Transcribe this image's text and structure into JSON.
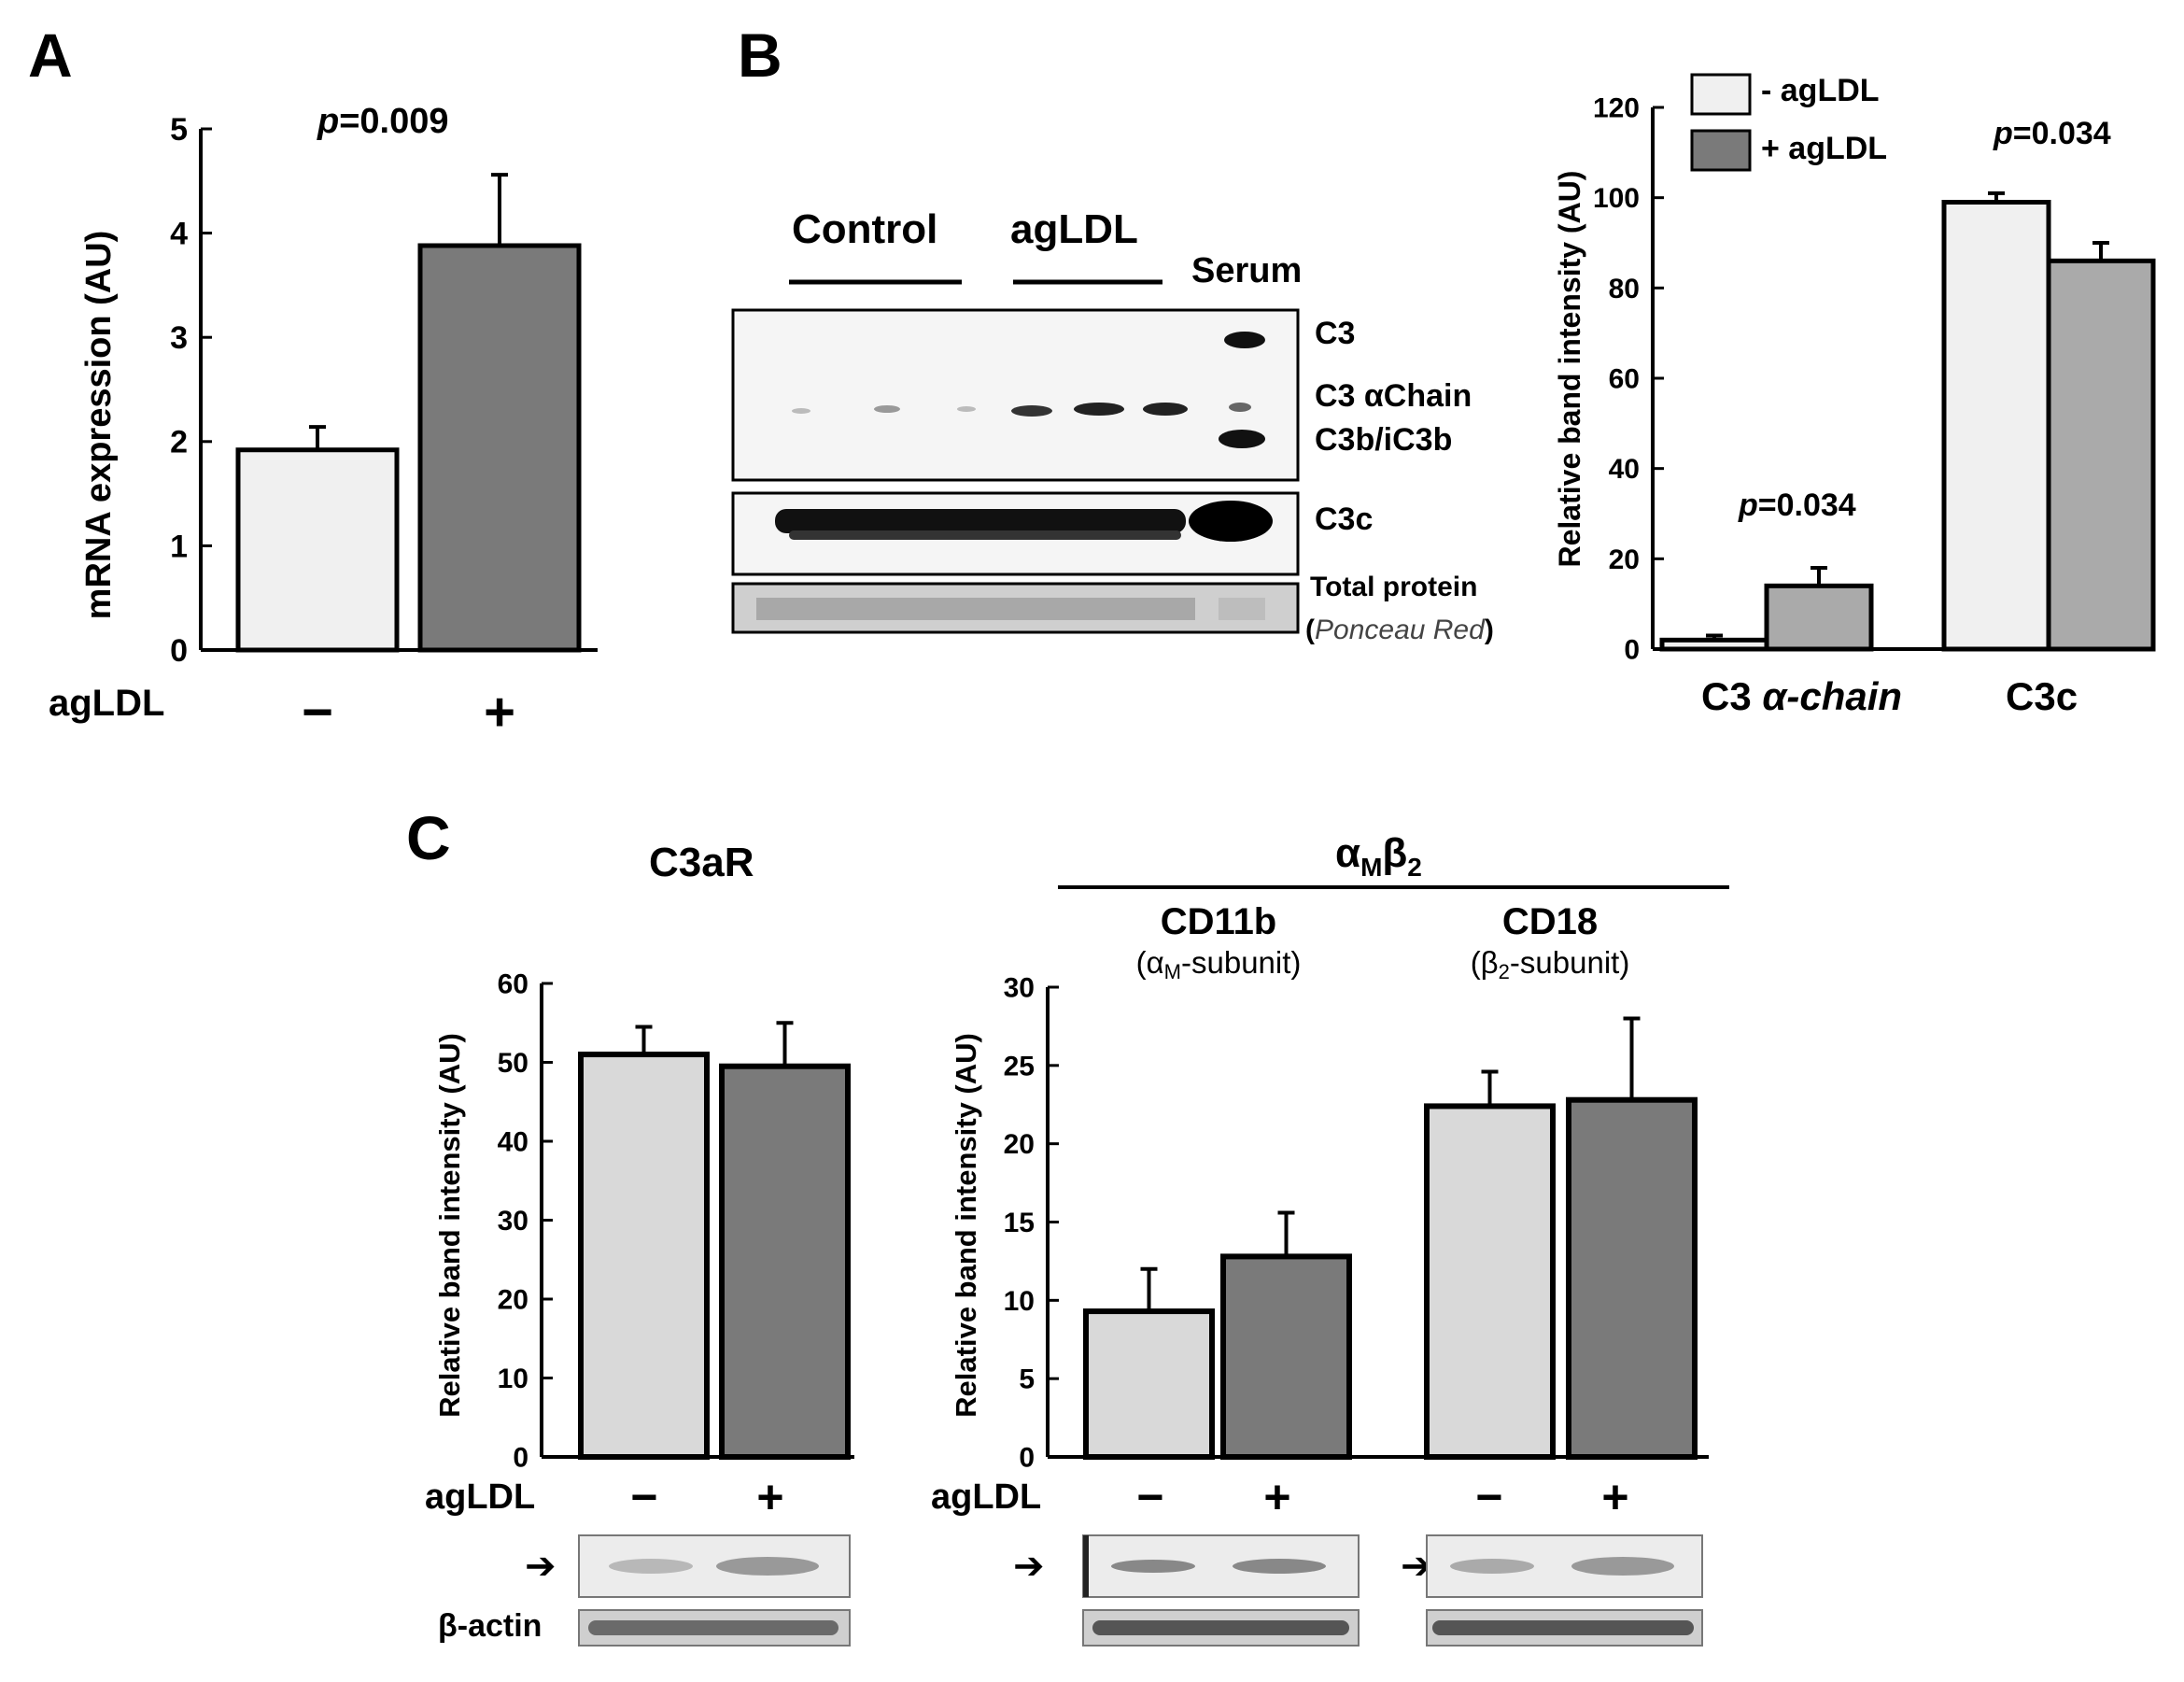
{
  "panels": {
    "A": {
      "letter": "A",
      "chart_data": {
        "type": "bar",
        "categories": [
          "−",
          "+"
        ],
        "values": [
          1.92,
          3.88
        ],
        "errors": [
          0.22,
          0.68
        ],
        "ylabel": "mRNA expression (AU)",
        "xlabel": "agLDL",
        "ylim": [
          0,
          5
        ],
        "yticks": [
          "0",
          "1",
          "2",
          "3",
          "4",
          "5"
        ],
        "pvalue_prefix": "p",
        "pvalue_suffix": "=0.009",
        "colors": [
          "#f0f0f0",
          "#7a7a7a"
        ]
      }
    },
    "B": {
      "letter": "B",
      "blot": {
        "group_labels": [
          "Control",
          "agLDL",
          "Serum"
        ],
        "band_labels": [
          "C3",
          "C3 αChain",
          "C3b/iC3b",
          "C3c"
        ],
        "total_protein_label": "Total protein",
        "ponceau_open": "(",
        "ponceau_label": "Ponceau Red",
        "ponceau_close": ")"
      },
      "chart_data": {
        "type": "bar",
        "categories": [
          "C3 α-chain",
          "C3c"
        ],
        "category_prefix": [
          "C3 ",
          ""
        ],
        "category_italic": [
          "α-chain",
          "C3c"
        ],
        "series": [
          {
            "name": "- agLDL",
            "values": [
              2,
              99
            ],
            "errors": [
              1,
              2
            ],
            "color": "#f0f0f0"
          },
          {
            "name": "+ agLDL",
            "values": [
              14,
              86
            ],
            "errors": [
              4,
              4
            ],
            "color": "#aaaaaa"
          }
        ],
        "ylabel": "Relative band intensity (AU)",
        "ylim": [
          0,
          120
        ],
        "yticks": [
          "0",
          "20",
          "40",
          "60",
          "80",
          "100",
          "120"
        ],
        "pvalues": [
          "=0.034",
          "=0.034"
        ],
        "pvalue_prefix": "p",
        "legend": "top-left"
      }
    },
    "C": {
      "letter": "C",
      "row_label": "agLDL",
      "minus": "−",
      "plus": "+",
      "beta_actin": "β-actin",
      "arrow": "➔",
      "complex_label_main": "α",
      "complex_label_sub1": "M",
      "complex_label_beta": "β",
      "complex_label_sub2": "2",
      "c3ar": {
        "title": "C3aR",
        "chart_data": {
          "type": "bar",
          "categories": [
            "−",
            "+"
          ],
          "values": [
            51,
            49.5
          ],
          "errors": [
            3.5,
            5.5
          ],
          "ylabel": "Relative band intensity (AU)",
          "ylim": [
            0,
            60
          ],
          "yticks": [
            "0",
            "10",
            "20",
            "30",
            "40",
            "50",
            "60"
          ],
          "colors": [
            "#d9d9d9",
            "#7a7a7a"
          ]
        }
      },
      "cd11b": {
        "title": "CD11b",
        "sub_open": "(α",
        "sub_sub": "M",
        "sub_close": "-subunit)"
      },
      "cd18": {
        "title": "CD18",
        "sub_open": "(β",
        "sub_sub": "2",
        "sub_close": "-subunit)"
      },
      "integrin_chart": {
        "chart_data": {
          "type": "bar",
          "groups": [
            "CD11b",
            "CD18"
          ],
          "values": [
            9.3,
            12.8,
            22.4,
            22.8
          ],
          "errors": [
            2.7,
            2.8,
            2.2,
            5.2
          ],
          "ylabel": "Relative band intensity (AU)",
          "ylim": [
            0,
            30
          ],
          "yticks": [
            "0",
            "5",
            "10",
            "15",
            "20",
            "25",
            "30"
          ],
          "colors": [
            "#d9d9d9",
            "#7a7a7a",
            "#d9d9d9",
            "#7a7a7a"
          ]
        }
      }
    }
  }
}
